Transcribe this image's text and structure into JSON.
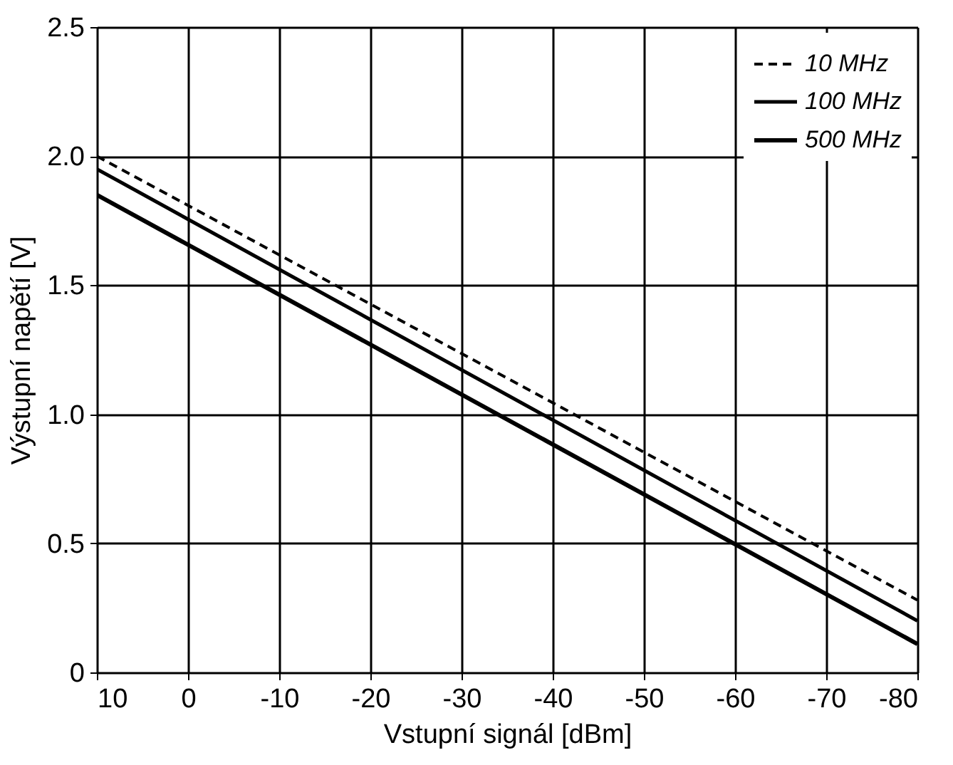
{
  "chart_data": {
    "type": "line",
    "xlabel": "Vstupní signál [dBm]",
    "ylabel": "Výstupní napětí [V]",
    "xlim": [
      10,
      -80
    ],
    "xticks": [
      10,
      0,
      -10,
      -20,
      -30,
      -40,
      -50,
      -60,
      -70,
      -80
    ],
    "ylim": [
      0,
      2.5
    ],
    "yticks": [
      0,
      0.5,
      {
        "value": 1,
        "label": "1.0"
      },
      1.5,
      {
        "value": 2,
        "label": "2.0"
      },
      2.5
    ],
    "grid": true,
    "legend": "top right",
    "marker": "none",
    "x": [
      10,
      -80
    ],
    "series": [
      {
        "name": "10 MHz",
        "color": "#000000",
        "line_style": "dashed",
        "values": [
          2.0,
          0.28
        ]
      },
      {
        "name": "100 MHz",
        "color": "#000000",
        "line_style": "solid",
        "values": [
          1.95,
          0.2
        ]
      },
      {
        "name": "500 MHz",
        "color": "#000000",
        "line_style": "solid",
        "values": [
          1.85,
          0.11
        ]
      }
    ]
  }
}
